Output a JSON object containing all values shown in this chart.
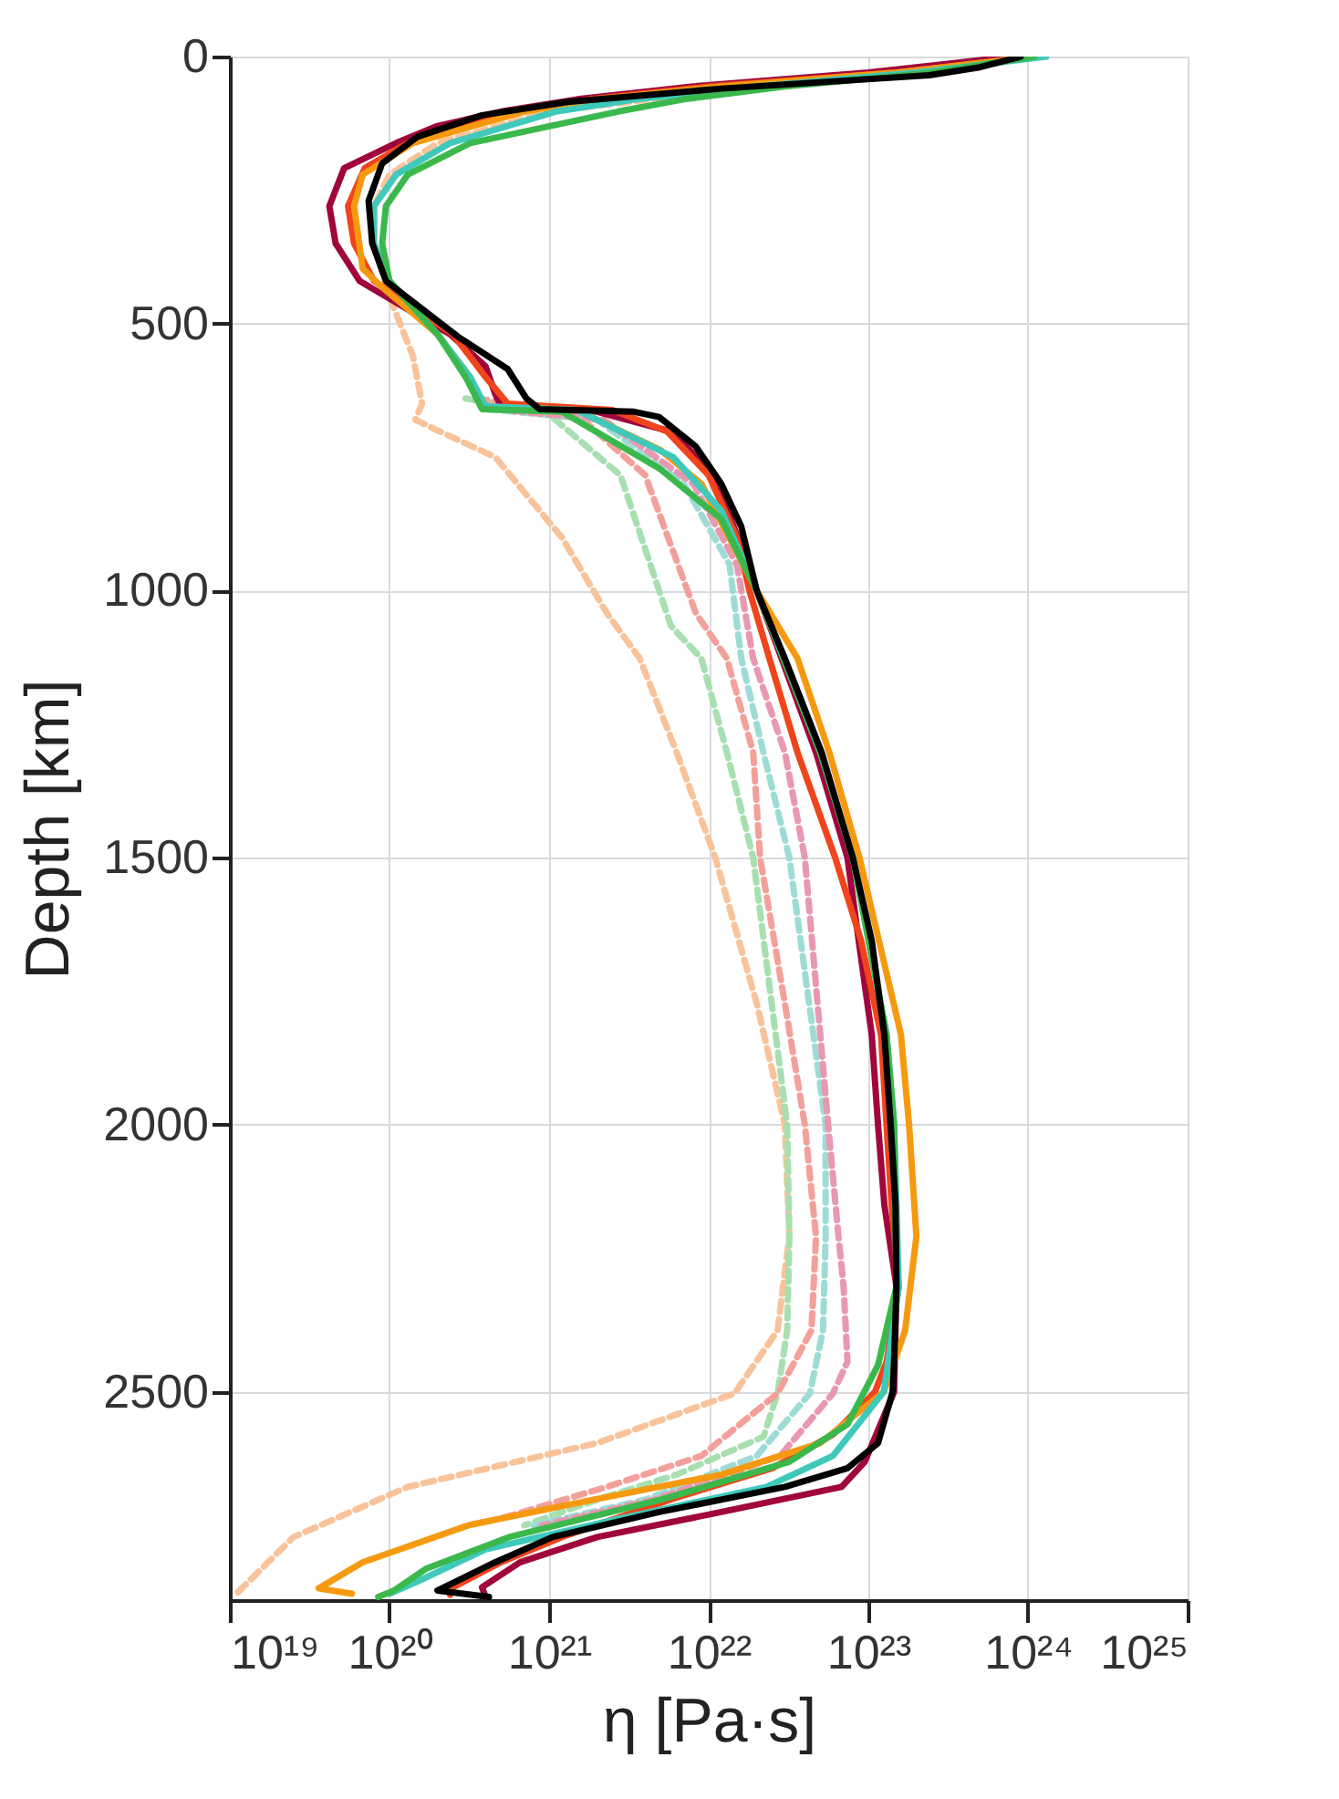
{
  "chart_data": {
    "type": "line",
    "xlabel": "η [Pa·s]",
    "ylabel": "Depth [km]",
    "log": "x",
    "grid": true,
    "legend": false,
    "marker": "none",
    "xlim": [
      1e+19,
      1e+25
    ],
    "xticks": [
      {
        "value": 1e+19,
        "label": "10¹⁹"
      },
      {
        "value": 1e+20,
        "label": "10²⁰"
      },
      {
        "value": 1e+21,
        "label": "10²¹"
      },
      {
        "value": 1e+22,
        "label": "10²²"
      },
      {
        "value": 1e+23,
        "label": "10²³"
      },
      {
        "value": 1e+24,
        "label": "10²⁴"
      },
      {
        "value": 1e+25,
        "label": "10²⁵"
      }
    ],
    "ylim": [
      2890,
      0
    ],
    "yticks": [
      0,
      500,
      1000,
      1500,
      2000,
      2500
    ],
    "series": [
      {
        "color": "#f8c39a",
        "line_style": "dashed",
        "x": [
          1.3e+24,
          2e+22,
          1e+21,
          2e+20,
          1e+20,
          8e+19,
          8e+19,
          1e+20,
          1.4e+20,
          1.6e+20,
          1.45e+20,
          2e+20,
          4.6e+20,
          1.2e+21,
          2.3e+21,
          3.7e+21,
          6.3e+21,
          1.1e+22,
          2e+22,
          3e+22,
          3.2e+22,
          2.7e+22,
          1.45e+22,
          2e+21,
          1.3e+20,
          2.5e+19,
          1.1e+19
        ],
        "values": [
          0,
          56,
          103,
          162,
          221,
          280,
          350,
          450,
          560,
          650,
          680,
          700,
          750,
          900,
          1042,
          1127,
          1303,
          1500,
          1773,
          2000,
          2209,
          2385,
          2503,
          2596,
          2678,
          2772,
          2878
        ]
      },
      {
        "color": "#a8dfb0",
        "line_style": "dashed",
        "x": [
          3e+20,
          1e+21,
          2.8e+21,
          5.8e+21,
          9e+21,
          1.3e+22,
          1.9e+22,
          3.1e+22,
          3.2e+22,
          3.1e+22,
          2.7e+22,
          2.2e+22,
          6.3e+21,
          2e+21,
          7e+20
        ],
        "values": [
          640,
          670,
          784,
          1066,
          1127,
          1303,
          1500,
          2000,
          2209,
          2385,
          2503,
          2584,
          2655,
          2702,
          2750
        ]
      },
      {
        "color": "#f3a09a",
        "line_style": "dashed",
        "x": [
          3.5e+20,
          1.5e+21,
          4e+21,
          8.3e+21,
          1.3e+22,
          1.9e+22,
          2.1e+22,
          3e+22,
          4e+22,
          4.7e+22,
          4.4e+22,
          2.7e+22,
          9e+21,
          2.3e+21,
          5e+20
        ],
        "values": [
          640,
          670,
          784,
          1042,
          1127,
          1303,
          1500,
          1773,
          2000,
          2209,
          2385,
          2503,
          2620,
          2678,
          2737
        ]
      },
      {
        "color": "#9ddcd6",
        "line_style": "dashed",
        "x": [
          4e+20,
          2e+21,
          7e+21,
          1.35e+22,
          1.6e+22,
          2.2e+22,
          3.2e+22,
          5.4e+22,
          5.4e+22,
          5.2e+22,
          4.3e+22,
          2e+22,
          4e+21,
          8e+20
        ],
        "values": [
          660,
          680,
          800,
          951,
          1127,
          1303,
          1500,
          2000,
          2209,
          2385,
          2503,
          2620,
          2702,
          2750
        ]
      },
      {
        "color": "#e898b0",
        "line_style": "dashed",
        "x": [
          4.5e+20,
          2.2e+21,
          8e+21,
          1.5e+22,
          1.9e+22,
          3e+22,
          4e+22,
          5.6e+22,
          6.5e+22,
          7e+22,
          7.4e+22,
          6e+22,
          2.8e+22,
          4.5e+21,
          9e+20
        ],
        "values": [
          660,
          680,
          800,
          951,
          1127,
          1303,
          1500,
          2000,
          2209,
          2303,
          2444,
          2503,
          2620,
          2702,
          2750
        ]
      },
      {
        "color": "#a0063c",
        "line_style": "solid",
        "x": [
          8e+23,
          1e+23,
          8e+21,
          1.5e+21,
          5e+20,
          2e+20,
          1.1e+20,
          5.2e+19,
          4.2e+19,
          4.6e+19,
          6.5e+19,
          2.4e+20,
          4e+20,
          4.6e+20,
          5e+20,
          2e+21,
          5.8e+21,
          1.1e+22,
          2e+22,
          4.7e+22,
          7.4e+22,
          8.7e+22,
          1.05e+23,
          1.15e+23,
          1.26e+23,
          1.5e+23,
          1.45e+23,
          9.5e+22,
          6.8e+22,
          1.2e+22,
          2e+21,
          6.6e+20,
          3.8e+20,
          4e+20
        ],
        "values": [
          0,
          30,
          56,
          80,
          103,
          130,
          162,
          209,
          280,
          350,
          420,
          520,
          580,
          632,
          655,
          665,
          702,
          784,
          1000,
          1303,
          1500,
          1655,
          1831,
          2000,
          2150,
          2303,
          2500,
          2631,
          2678,
          2725,
          2772,
          2819,
          2866,
          2884
        ]
      },
      {
        "color": "#f0441c",
        "line_style": "solid",
        "x": [
          1.2e+24,
          1.5e+23,
          1e+22,
          1.8e+21,
          6e+20,
          1.3e+20,
          7e+19,
          5.5e+19,
          6e+19,
          8e+19,
          2.5e+20,
          4e+20,
          5.5e+20,
          2.5e+21,
          5.5e+21,
          1e+22,
          1.5e+22,
          1.8e+22,
          2.4e+22,
          3.6e+22,
          6.2e+22,
          9e+22,
          1.2e+23,
          1.3e+23,
          1.4e+23,
          1.55e+23,
          1.3e+23,
          1.1e+23,
          6e+22,
          2.5e+22,
          6e+21,
          1.2e+21,
          5e+20,
          2.5e+20,
          2.4e+20
        ],
        "values": [
          0,
          30,
          56,
          80,
          103,
          162,
          209,
          280,
          350,
          420,
          520,
          600,
          650,
          662,
          702,
          784,
          900,
          1000,
          1127,
          1303,
          1500,
          1655,
          1831,
          2000,
          2150,
          2303,
          2444,
          2500,
          2580,
          2643,
          2700,
          2772,
          2819,
          2866,
          2880
        ]
      },
      {
        "color": "#f59a10",
        "line_style": "solid",
        "x": [
          1.1e+24,
          1.5e+23,
          1.2e+22,
          2e+21,
          7e+20,
          1.4e+20,
          6.8e+19,
          6e+19,
          6.8e+19,
          9e+19,
          2e+20,
          3.2e+20,
          3.9e+20,
          1.5e+21,
          5e+21,
          9e+21,
          2e+22,
          3.6e+22,
          5.7e+22,
          8.8e+22,
          1.6e+23,
          1.8e+23,
          2e+23,
          1.7e+23,
          1.25e+23,
          5e+22,
          1.2e+22,
          1.9e+21,
          3.2e+20,
          6.8e+19,
          3.6e+19,
          5.8e+19
        ],
        "values": [
          0,
          30,
          56,
          80,
          103,
          162,
          221,
          280,
          397,
          432,
          520,
          600,
          655,
          662,
          737,
          800,
          1000,
          1127,
          1303,
          1500,
          1831,
          2000,
          2209,
          2385,
          2500,
          2596,
          2655,
          2702,
          2749,
          2819,
          2868,
          2878
        ]
      },
      {
        "color": "#3ec9bb",
        "line_style": "solid",
        "x": [
          1.3e+24,
          2e+23,
          2e+22,
          3.5e+21,
          1.1e+21,
          2.4e+20,
          1.1e+20,
          8e+19,
          8e+19,
          1e+20,
          2e+20,
          3.2e+20,
          4e+20,
          1.5e+21,
          6e+21,
          1.2e+22,
          2e+22,
          5e+22,
          8e+22,
          1.3e+23,
          1.45e+23,
          1.55e+23,
          1.25e+23,
          6e+22,
          2.3e+22,
          2.8e+21,
          4e+20,
          1.5e+20,
          1e+20
        ],
        "values": [
          0,
          30,
          56,
          80,
          103,
          162,
          221,
          280,
          350,
          420,
          520,
          600,
          655,
          662,
          750,
          850,
          1000,
          1303,
          1500,
          1831,
          2000,
          2303,
          2500,
          2620,
          2678,
          2737,
          2795,
          2855,
          2878
        ]
      },
      {
        "color": "#3bb84c",
        "line_style": "solid",
        "x": [
          1.1e+24,
          2.5e+23,
          3e+22,
          7e+21,
          2.7e+21,
          3.2e+20,
          1.3e+20,
          9.5e+19,
          9e+19,
          1e+20,
          2e+20,
          3e+20,
          3.8e+20,
          1.2e+21,
          4.9e+21,
          1.2e+22,
          2e+22,
          5e+22,
          8e+22,
          1.3e+23,
          1.45e+23,
          1.5e+23,
          1.15e+23,
          7.4e+22,
          3.2e+22,
          5e+21,
          5.6e+20,
          1.7e+20,
          1.07e+20,
          8.5e+19
        ],
        "values": [
          0,
          30,
          56,
          80,
          103,
          162,
          221,
          280,
          350,
          420,
          520,
          600,
          660,
          665,
          771,
          866,
          1000,
          1303,
          1500,
          1831,
          2000,
          2303,
          2450,
          2561,
          2631,
          2702,
          2772,
          2831,
          2872,
          2884
        ]
      },
      {
        "color": "#000000",
        "line_style": "solid",
        "x": [
          9e+23,
          5e+23,
          2.4e+23,
          1.2e+22,
          1.3e+21,
          3.8e+20,
          1.5e+20,
          9e+19,
          7.4e+19,
          7.8e+19,
          9.5e+19,
          2.7e+20,
          5.5e+20,
          7.2e+20,
          8.7e+20,
          3.4e+21,
          4.9e+21,
          8.3e+21,
          1.2e+22,
          1.6e+22,
          2e+22,
          3e+22,
          5.1e+22,
          8e+22,
          1.05e+23,
          1.26e+23,
          1.38e+23,
          1.48e+23,
          1.5e+23,
          1.45e+23,
          1.42e+23,
          1.15e+23,
          7.4e+22,
          3e+22,
          4.9e+21,
          1.05e+21,
          4.6e+20,
          2.2e+20,
          2e+20,
          4.2e+20
        ],
        "values": [
          0,
          20,
          35,
          60,
          85,
          110,
          150,
          200,
          270,
          350,
          420,
          525,
          585,
          640,
          660,
          665,
          675,
          730,
          800,
          880,
          1000,
          1127,
          1303,
          1500,
          1655,
          1831,
          2000,
          2150,
          2303,
          2444,
          2500,
          2596,
          2643,
          2678,
          2725,
          2772,
          2819,
          2866,
          2872,
          2884
        ]
      }
    ]
  }
}
